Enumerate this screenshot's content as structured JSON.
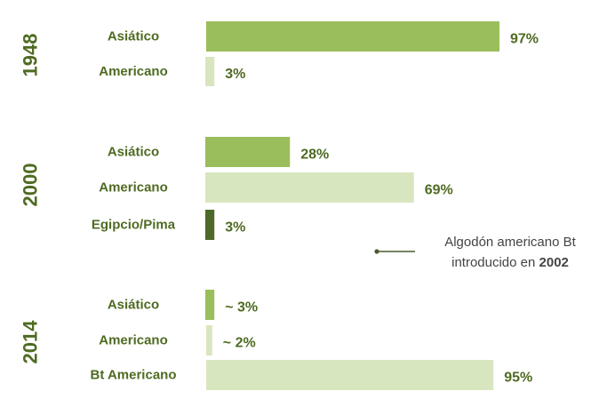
{
  "chart_data": {
    "type": "bar",
    "orientation": "horizontal",
    "value_unit": "%",
    "groups": [
      {
        "year": "1948",
        "bars": [
          {
            "category": "Asiático",
            "value": 97,
            "label": "97%",
            "shade": "medium"
          },
          {
            "category": "Americano",
            "value": 3,
            "label": "3%",
            "shade": "light"
          }
        ]
      },
      {
        "year": "2000",
        "bars": [
          {
            "category": "Asiático",
            "value": 28,
            "label": "28%",
            "shade": "medium"
          },
          {
            "category": "Americano",
            "value": 69,
            "label": "69%",
            "shade": "light"
          },
          {
            "category": "Egipcio/Pima",
            "value": 3,
            "label": "3%",
            "shade": "dark"
          }
        ]
      },
      {
        "year": "2014",
        "bars": [
          {
            "category": "Asiático",
            "value": 3,
            "label": "~ 3%",
            "shade": "medium"
          },
          {
            "category": "Americano",
            "value": 2,
            "label": "~ 2%",
            "shade": "light"
          },
          {
            "category": "Bt Americano",
            "value": 95,
            "label": "95%",
            "shade": "light"
          }
        ]
      }
    ],
    "annotation": {
      "line1": "Algodón americano Bt",
      "line2_prefix": "introducido en ",
      "line2_bold": "2002"
    },
    "colors": {
      "medium": "#9bbe5c",
      "light": "#d8e6c0",
      "dark": "#4d6a28",
      "text": "#4f6b22",
      "annotation_text": "#444444",
      "annotation_line": "#4a5a30"
    }
  }
}
